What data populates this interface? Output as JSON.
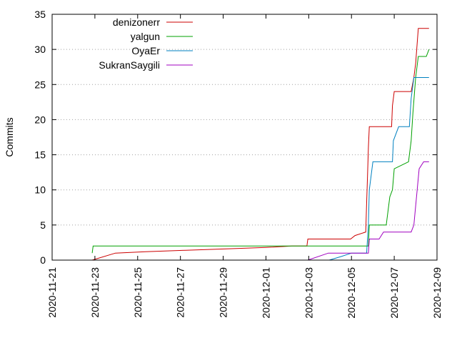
{
  "chart_data": {
    "type": "line",
    "title": "",
    "xlabel": "",
    "ylabel": "Commits",
    "xlim": [
      "2020-11-21",
      "2020-12-09"
    ],
    "ylim": [
      0,
      35
    ],
    "x_ticks": [
      "2020-11-21",
      "2020-11-23",
      "2020-11-25",
      "2020-11-27",
      "2020-11-29",
      "2020-12-01",
      "2020-12-03",
      "2020-12-05",
      "2020-12-07",
      "2020-12-09"
    ],
    "y_ticks": [
      "0",
      "5",
      "10",
      "15",
      "20",
      "25",
      "30",
      "35"
    ],
    "grid": "dotted horizontal",
    "legend_position": "top-left",
    "series": [
      {
        "name": "denizonerr",
        "color": "#cc0000",
        "points": [
          [
            "2020-11-22 21:00",
            0
          ],
          [
            "2020-11-23 23:00",
            1
          ],
          [
            "2020-11-25 09:00",
            1.2
          ],
          [
            "2020-11-27 06:00",
            1.4
          ],
          [
            "2020-11-29 04:00",
            1.6
          ],
          [
            "2020-12-01 00:00",
            1.8
          ],
          [
            "2020-12-02 05:00",
            2
          ],
          [
            "2020-12-02 22:00",
            2
          ],
          [
            "2020-12-02 23:00",
            3
          ],
          [
            "2020-12-04 23:00",
            3
          ],
          [
            "2020-12-05 04:00",
            3.5
          ],
          [
            "2020-12-05 16:00",
            4
          ],
          [
            "2020-12-05 17:00",
            8
          ],
          [
            "2020-12-05 18:00",
            12
          ],
          [
            "2020-12-05 19:00",
            16
          ],
          [
            "2020-12-05 20:00",
            19
          ],
          [
            "2020-12-06 21:00",
            19
          ],
          [
            "2020-12-06 22:00",
            22
          ],
          [
            "2020-12-07 00:00",
            24
          ],
          [
            "2020-12-07 19:00",
            24
          ],
          [
            "2020-12-07 22:00",
            26
          ],
          [
            "2020-12-08 00:00",
            28
          ],
          [
            "2020-12-08 03:00",
            33
          ],
          [
            "2020-12-08 15:00",
            33
          ]
        ]
      },
      {
        "name": "yalgun",
        "color": "#00a000",
        "points": [
          [
            "2020-11-22 21:00",
            1
          ],
          [
            "2020-11-22 22:00",
            2
          ],
          [
            "2020-12-05 19:00",
            2
          ],
          [
            "2020-12-05 20:00",
            5
          ],
          [
            "2020-12-06 15:00",
            5
          ],
          [
            "2020-12-06 17:00",
            7
          ],
          [
            "2020-12-06 19:00",
            9
          ],
          [
            "2020-12-06 22:00",
            10
          ],
          [
            "2020-12-07 00:00",
            13
          ],
          [
            "2020-12-07 16:00",
            14
          ],
          [
            "2020-12-07 19:00",
            17
          ],
          [
            "2020-12-07 21:00",
            21
          ],
          [
            "2020-12-08 00:00",
            26
          ],
          [
            "2020-12-08 03:00",
            29
          ],
          [
            "2020-12-08 12:00",
            29
          ],
          [
            "2020-12-08 15:00",
            30
          ]
        ]
      },
      {
        "name": "OyaEr",
        "color": "#0080c0",
        "points": [
          [
            "2020-12-03 23:00",
            0
          ],
          [
            "2020-12-04 12:00",
            0.5
          ],
          [
            "2020-12-05 00:00",
            1
          ],
          [
            "2020-12-05 17:00",
            1
          ],
          [
            "2020-12-05 19:00",
            5
          ],
          [
            "2020-12-05 20:00",
            10
          ],
          [
            "2020-12-06 00:00",
            14
          ],
          [
            "2020-12-06 22:00",
            14
          ],
          [
            "2020-12-06 23:00",
            17
          ],
          [
            "2020-12-07 05:00",
            19
          ],
          [
            "2020-12-07 17:00",
            19
          ],
          [
            "2020-12-07 19:00",
            23
          ],
          [
            "2020-12-07 22:00",
            26
          ],
          [
            "2020-12-08 15:00",
            26
          ]
        ]
      },
      {
        "name": "SukranSaygili",
        "color": "#a000c0",
        "points": [
          [
            "2020-12-02 23:00",
            0
          ],
          [
            "2020-12-03 22:00",
            1
          ],
          [
            "2020-12-05 19:00",
            1
          ],
          [
            "2020-12-05 20:00",
            3
          ],
          [
            "2020-12-06 07:00",
            3
          ],
          [
            "2020-12-06 12:00",
            4
          ],
          [
            "2020-12-07 19:00",
            4
          ],
          [
            "2020-12-07 22:00",
            5
          ],
          [
            "2020-12-08 04:00",
            13
          ],
          [
            "2020-12-08 09:00",
            14
          ],
          [
            "2020-12-08 15:00",
            14
          ]
        ]
      }
    ]
  }
}
